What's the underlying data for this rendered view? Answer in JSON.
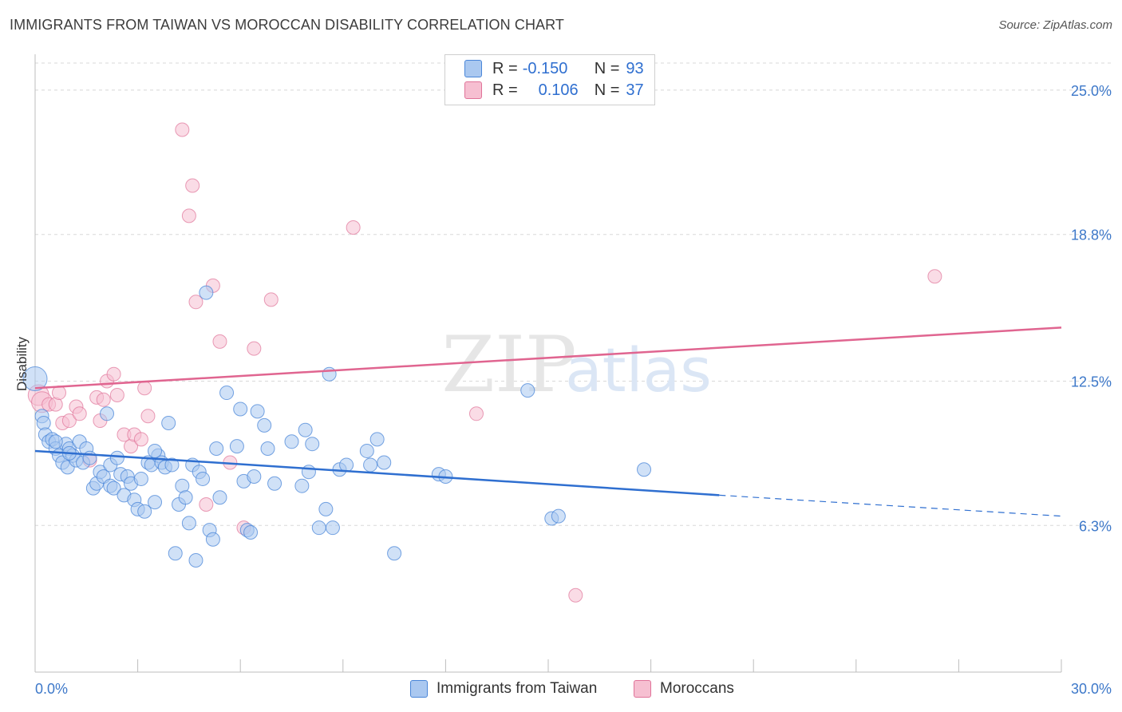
{
  "title": "IMMIGRANTS FROM TAIWAN VS MOROCCAN DISABILITY CORRELATION CHART",
  "source": "Source: ZipAtlas.com",
  "legend": {
    "r_label": "R =",
    "n_label": "N =",
    "series1": {
      "r": "-0.150",
      "n": "93"
    },
    "series2": {
      "r": "0.106",
      "n": "37"
    }
  },
  "bottom_legend": {
    "series1": "Immigrants from Taiwan",
    "series2": "Moroccans"
  },
  "colors": {
    "blue": "#4a86d8",
    "blue_fill": "#aac8f0",
    "pink": "#e07399",
    "pink_fill": "#f6bfd1",
    "axis_label": "#3d78c9",
    "grid": "#d8d8d8"
  },
  "chart_data": {
    "type": "scatter",
    "title": "IMMIGRANTS FROM TAIWAN VS MOROCCAN DISABILITY CORRELATION CHART",
    "xlabel": "",
    "ylabel": "Disability",
    "xlim": [
      0,
      30
    ],
    "ylim": [
      0,
      26.3
    ],
    "x_tick_labels": [
      "0.0%",
      "30.0%"
    ],
    "y_ticks": [
      6.3,
      12.5,
      18.8,
      25.0
    ],
    "y_tick_labels": [
      "6.3%",
      "12.5%",
      "18.8%",
      "25.0%"
    ],
    "watermark": {
      "bold": "ZIP",
      "light": "atlas"
    },
    "series": [
      {
        "name": "Immigrants from Taiwan",
        "color": "#4a86d8",
        "trend": {
          "x0": 0,
          "y0": 9.5,
          "x1": 20.0,
          "y1": 7.6,
          "dash_x1": 30,
          "dash_y1": 6.7
        },
        "points": [
          [
            0.0,
            12.6
          ],
          [
            0.2,
            11.0
          ],
          [
            0.25,
            10.7
          ],
          [
            0.3,
            10.2
          ],
          [
            0.4,
            9.9
          ],
          [
            0.5,
            10.0
          ],
          [
            0.6,
            9.6
          ],
          [
            0.7,
            9.3
          ],
          [
            0.8,
            9.0
          ],
          [
            0.9,
            9.8
          ],
          [
            0.95,
            8.8
          ],
          [
            1.0,
            9.6
          ],
          [
            1.1,
            9.3
          ],
          [
            1.2,
            9.1
          ],
          [
            1.3,
            9.9
          ],
          [
            1.4,
            9.0
          ],
          [
            1.5,
            9.6
          ],
          [
            1.6,
            9.2
          ],
          [
            1.7,
            7.9
          ],
          [
            1.8,
            8.1
          ],
          [
            1.9,
            8.6
          ],
          [
            2.0,
            8.4
          ],
          [
            2.1,
            11.1
          ],
          [
            2.2,
            8.0
          ],
          [
            2.3,
            7.9
          ],
          [
            2.5,
            8.5
          ],
          [
            2.6,
            7.6
          ],
          [
            2.7,
            8.4
          ],
          [
            2.8,
            8.1
          ],
          [
            2.9,
            7.4
          ],
          [
            3.0,
            7.0
          ],
          [
            3.1,
            8.3
          ],
          [
            3.2,
            6.9
          ],
          [
            3.3,
            9.0
          ],
          [
            3.4,
            8.9
          ],
          [
            3.5,
            7.3
          ],
          [
            3.6,
            9.3
          ],
          [
            3.7,
            9.0
          ],
          [
            3.8,
            8.8
          ],
          [
            3.9,
            10.7
          ],
          [
            4.0,
            8.9
          ],
          [
            4.1,
            5.1
          ],
          [
            4.2,
            7.2
          ],
          [
            4.3,
            8.0
          ],
          [
            4.4,
            7.5
          ],
          [
            4.5,
            6.4
          ],
          [
            4.6,
            8.9
          ],
          [
            4.7,
            4.8
          ],
          [
            4.8,
            8.6
          ],
          [
            4.9,
            8.3
          ],
          [
            5.0,
            16.3
          ],
          [
            5.1,
            6.1
          ],
          [
            5.2,
            5.7
          ],
          [
            5.3,
            9.6
          ],
          [
            5.4,
            7.5
          ],
          [
            5.6,
            12.0
          ],
          [
            5.9,
            9.7
          ],
          [
            6.0,
            11.3
          ],
          [
            6.1,
            8.2
          ],
          [
            6.2,
            6.1
          ],
          [
            6.3,
            6.0
          ],
          [
            6.5,
            11.2
          ],
          [
            6.7,
            10.6
          ],
          [
            6.8,
            9.6
          ],
          [
            7.0,
            8.1
          ],
          [
            7.5,
            9.9
          ],
          [
            7.8,
            8.0
          ],
          [
            7.9,
            10.4
          ],
          [
            8.0,
            8.6
          ],
          [
            8.1,
            9.8
          ],
          [
            8.3,
            6.2
          ],
          [
            8.5,
            7.0
          ],
          [
            8.6,
            12.8
          ],
          [
            8.7,
            6.2
          ],
          [
            8.9,
            8.7
          ],
          [
            9.1,
            8.9
          ],
          [
            9.7,
            9.5
          ],
          [
            9.8,
            8.9
          ],
          [
            10.0,
            10.0
          ],
          [
            10.2,
            9.0
          ],
          [
            10.5,
            5.1
          ],
          [
            11.8,
            8.5
          ],
          [
            12.0,
            8.4
          ],
          [
            14.4,
            12.1
          ],
          [
            15.1,
            6.6
          ],
          [
            15.3,
            6.7
          ],
          [
            17.8,
            8.7
          ],
          [
            2.2,
            8.9
          ],
          [
            3.5,
            9.5
          ],
          [
            0.6,
            9.9
          ],
          [
            1.0,
            9.4
          ],
          [
            2.4,
            9.2
          ],
          [
            6.4,
            8.4
          ]
        ]
      },
      {
        "name": "Moroccans",
        "color": "#e07399",
        "trend": {
          "x0": 0,
          "y0": 12.2,
          "x1": 30,
          "y1": 14.8
        },
        "points": [
          [
            0.1,
            11.9
          ],
          [
            0.2,
            11.6
          ],
          [
            0.4,
            11.5
          ],
          [
            0.6,
            11.5
          ],
          [
            0.7,
            12.0
          ],
          [
            0.8,
            10.7
          ],
          [
            1.0,
            10.8
          ],
          [
            1.2,
            11.4
          ],
          [
            1.3,
            11.1
          ],
          [
            1.6,
            9.1
          ],
          [
            1.8,
            11.8
          ],
          [
            1.9,
            10.8
          ],
          [
            2.0,
            11.7
          ],
          [
            2.1,
            12.5
          ],
          [
            2.3,
            12.8
          ],
          [
            2.4,
            11.9
          ],
          [
            2.6,
            10.2
          ],
          [
            2.8,
            9.7
          ],
          [
            2.9,
            10.2
          ],
          [
            3.1,
            10.0
          ],
          [
            3.2,
            12.2
          ],
          [
            3.3,
            11.0
          ],
          [
            4.3,
            23.3
          ],
          [
            4.5,
            19.6
          ],
          [
            4.6,
            20.9
          ],
          [
            4.7,
            15.9
          ],
          [
            5.0,
            7.2
          ],
          [
            5.2,
            16.6
          ],
          [
            5.4,
            14.2
          ],
          [
            5.7,
            9.0
          ],
          [
            6.1,
            6.2
          ],
          [
            6.4,
            13.9
          ],
          [
            6.9,
            16.0
          ],
          [
            9.3,
            19.1
          ],
          [
            12.9,
            11.1
          ],
          [
            15.8,
            3.3
          ],
          [
            26.3,
            17.0
          ]
        ]
      }
    ]
  }
}
